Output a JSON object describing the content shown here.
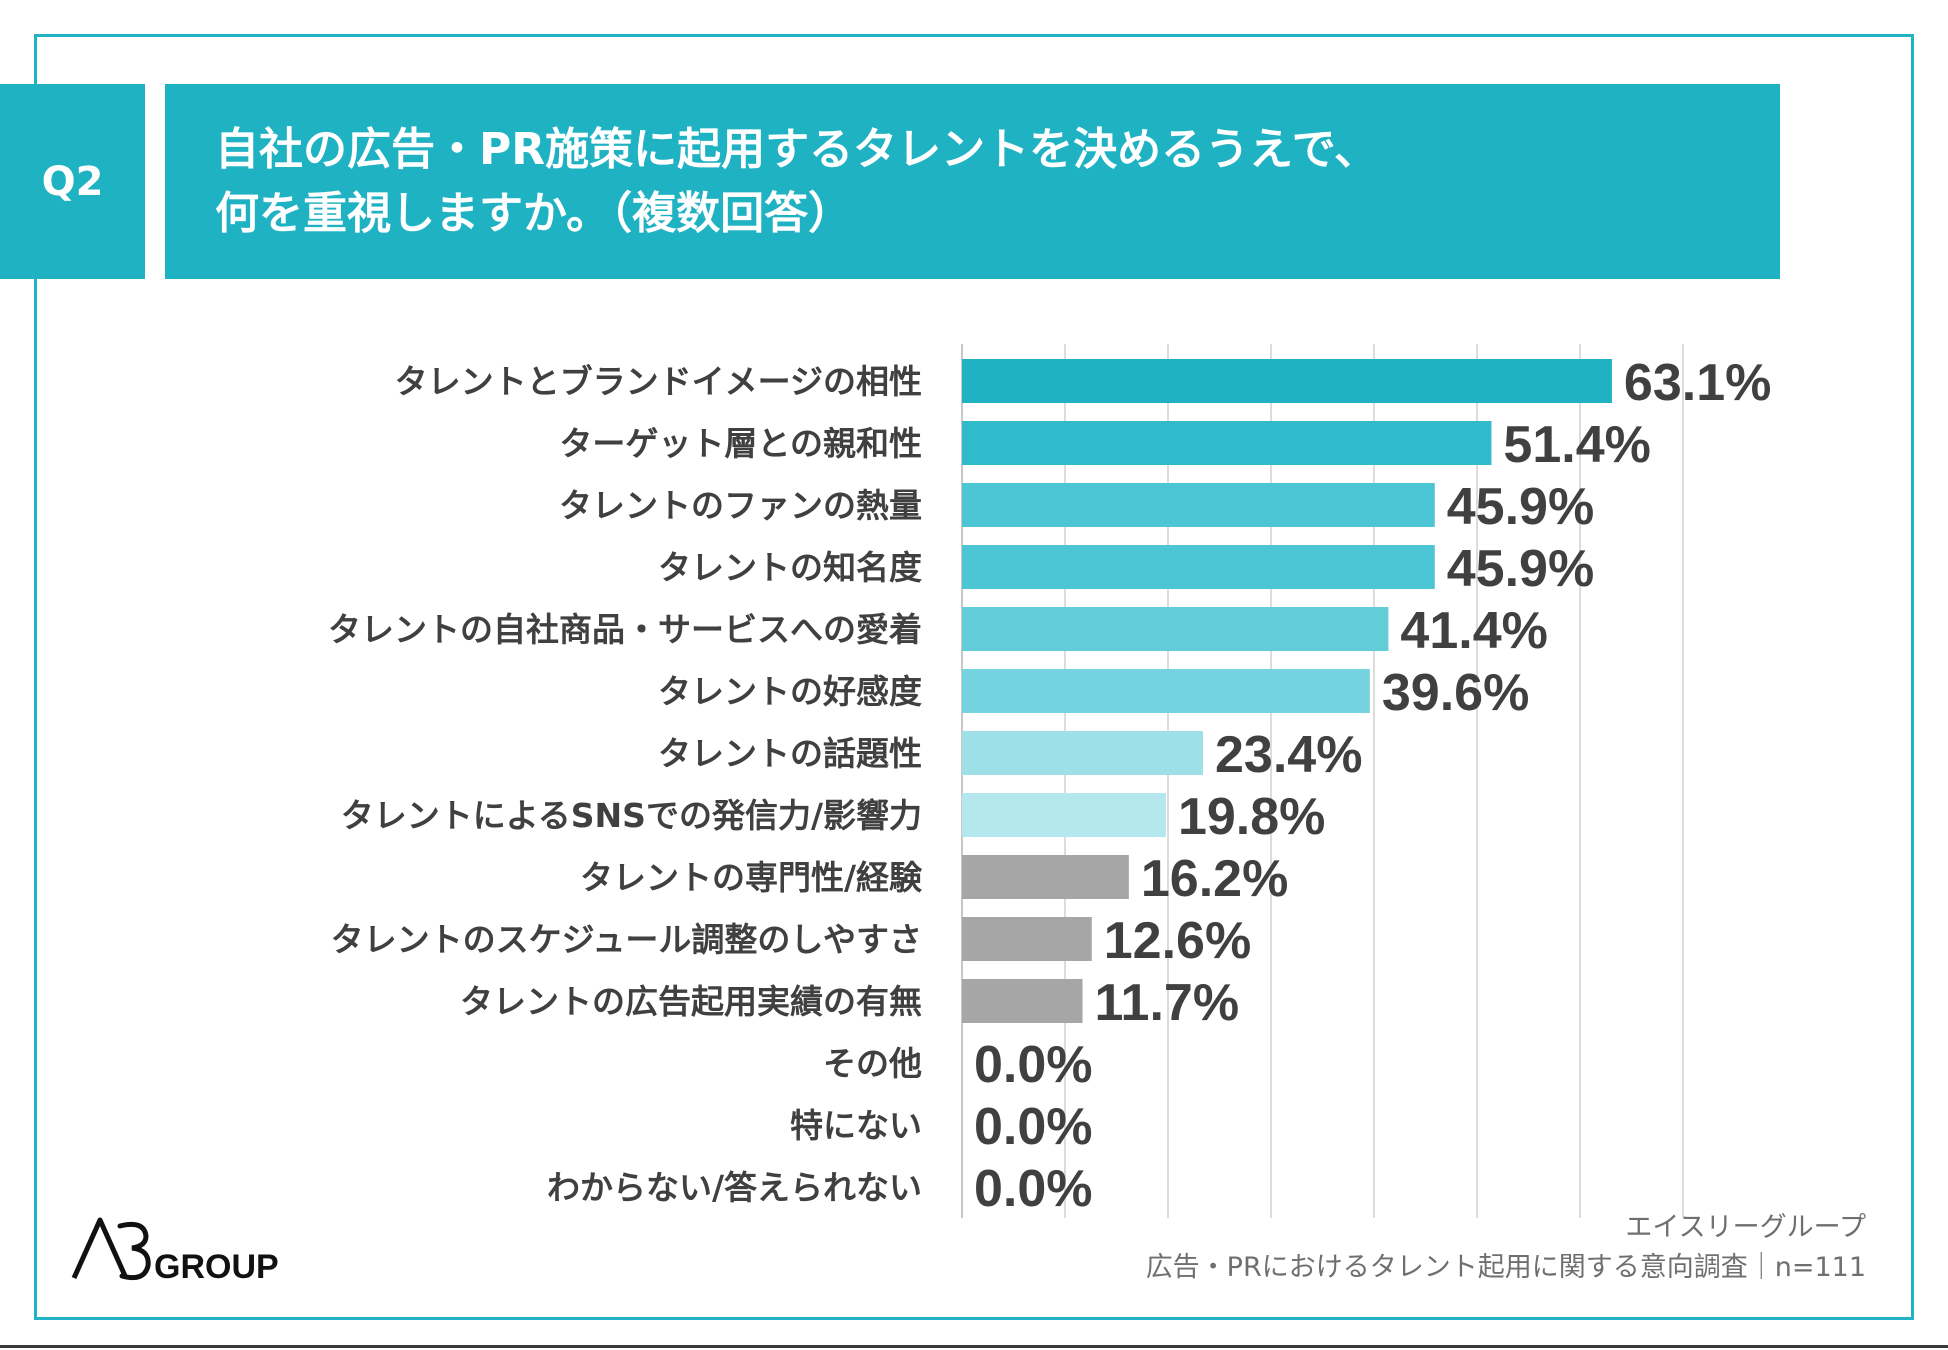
{
  "header": {
    "q_label": "Q2",
    "title_line1": "自社の広告・PR施策に起用するタレントを決めるうえで、",
    "title_line2": "何を重視しますか。（複数回答）"
  },
  "colors": {
    "accent": "#1fb2c3",
    "frame": "#20b3c4",
    "gray_bar": "#a6a6a6",
    "text": "#404040",
    "grid": "#dcdcdc"
  },
  "chart_data": {
    "type": "bar",
    "orientation": "horizontal",
    "title": "自社の広告・PR施策に起用するタレントを決めるうえで、何を重視しますか。（複数回答）",
    "xlim": [
      0,
      70
    ],
    "grid": true,
    "value_suffix": "%",
    "categories": [
      "タレントとブランドイメージの相性",
      "ターゲット層との親和性",
      "タレントのファンの熱量",
      "タレントの知名度",
      "タレントの自社商品・サービスへの愛着",
      "タレントの好感度",
      "タレントの話題性",
      "タレントによるSNSでの発信力/影響力",
      "タレントの専門性/経験",
      "タレントのスケジュール調整のしやすさ",
      "タレントの広告起用実績の有無",
      "その他",
      "特にない",
      "わからない/答えられない"
    ],
    "values": [
      63.1,
      51.4,
      45.9,
      45.9,
      41.4,
      39.6,
      23.4,
      19.8,
      16.2,
      12.6,
      11.7,
      0.0,
      0.0,
      0.0
    ],
    "value_labels": [
      "63.1%",
      "51.4%",
      "45.9%",
      "45.9%",
      "41.4%",
      "39.6%",
      "23.4%",
      "19.8%",
      "16.2%",
      "12.6%",
      "11.7%",
      "0.0%",
      "0.0%",
      "0.0%"
    ],
    "bar_colors": [
      "#1fb2c3",
      "#2fbbcb",
      "#4cc6d4",
      "#4cc6d4",
      "#62cdd9",
      "#74d3de",
      "#9ee0e8",
      "#b4e8ee",
      "#a6a6a6",
      "#a6a6a6",
      "#a6a6a6",
      "#a6a6a6",
      "#a6a6a6",
      "#a6a6a6"
    ]
  },
  "source": {
    "line1": "エイスリーグループ",
    "line2": "広告・PRにおけるタレント起用に関する意向調査｜n=111"
  },
  "logo": {
    "text": "A3GROUP"
  }
}
